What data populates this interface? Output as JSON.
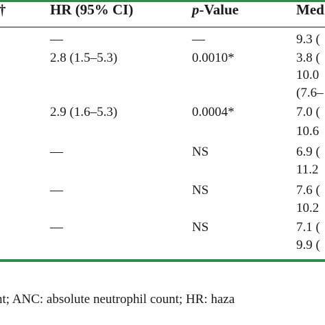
{
  "table": {
    "headers": {
      "dagger": "†",
      "hr": "HR (95% CI)",
      "p_value_italic": "p",
      "p_value_rest": "-Value",
      "median": "Med"
    },
    "hr_col": [
      "—",
      "2.8 (1.5–5.3)",
      "2.9 (1.6–5.3)",
      "—",
      "—",
      "—"
    ],
    "p_col": [
      "—",
      "0.0010*",
      "0.0004*",
      "NS",
      "NS",
      "NS"
    ],
    "median_col": [
      "9.3 (",
      "3.8 (",
      "10.0",
      "(7.6–",
      "7.0 (",
      "10.6",
      "6.9 (",
      "11.2",
      "7.6 (",
      "10.2",
      "7.1 (",
      "9.9 ("
    ]
  },
  "footnote": "nt; ANC: absolute neutrophil count; HR: haza"
}
